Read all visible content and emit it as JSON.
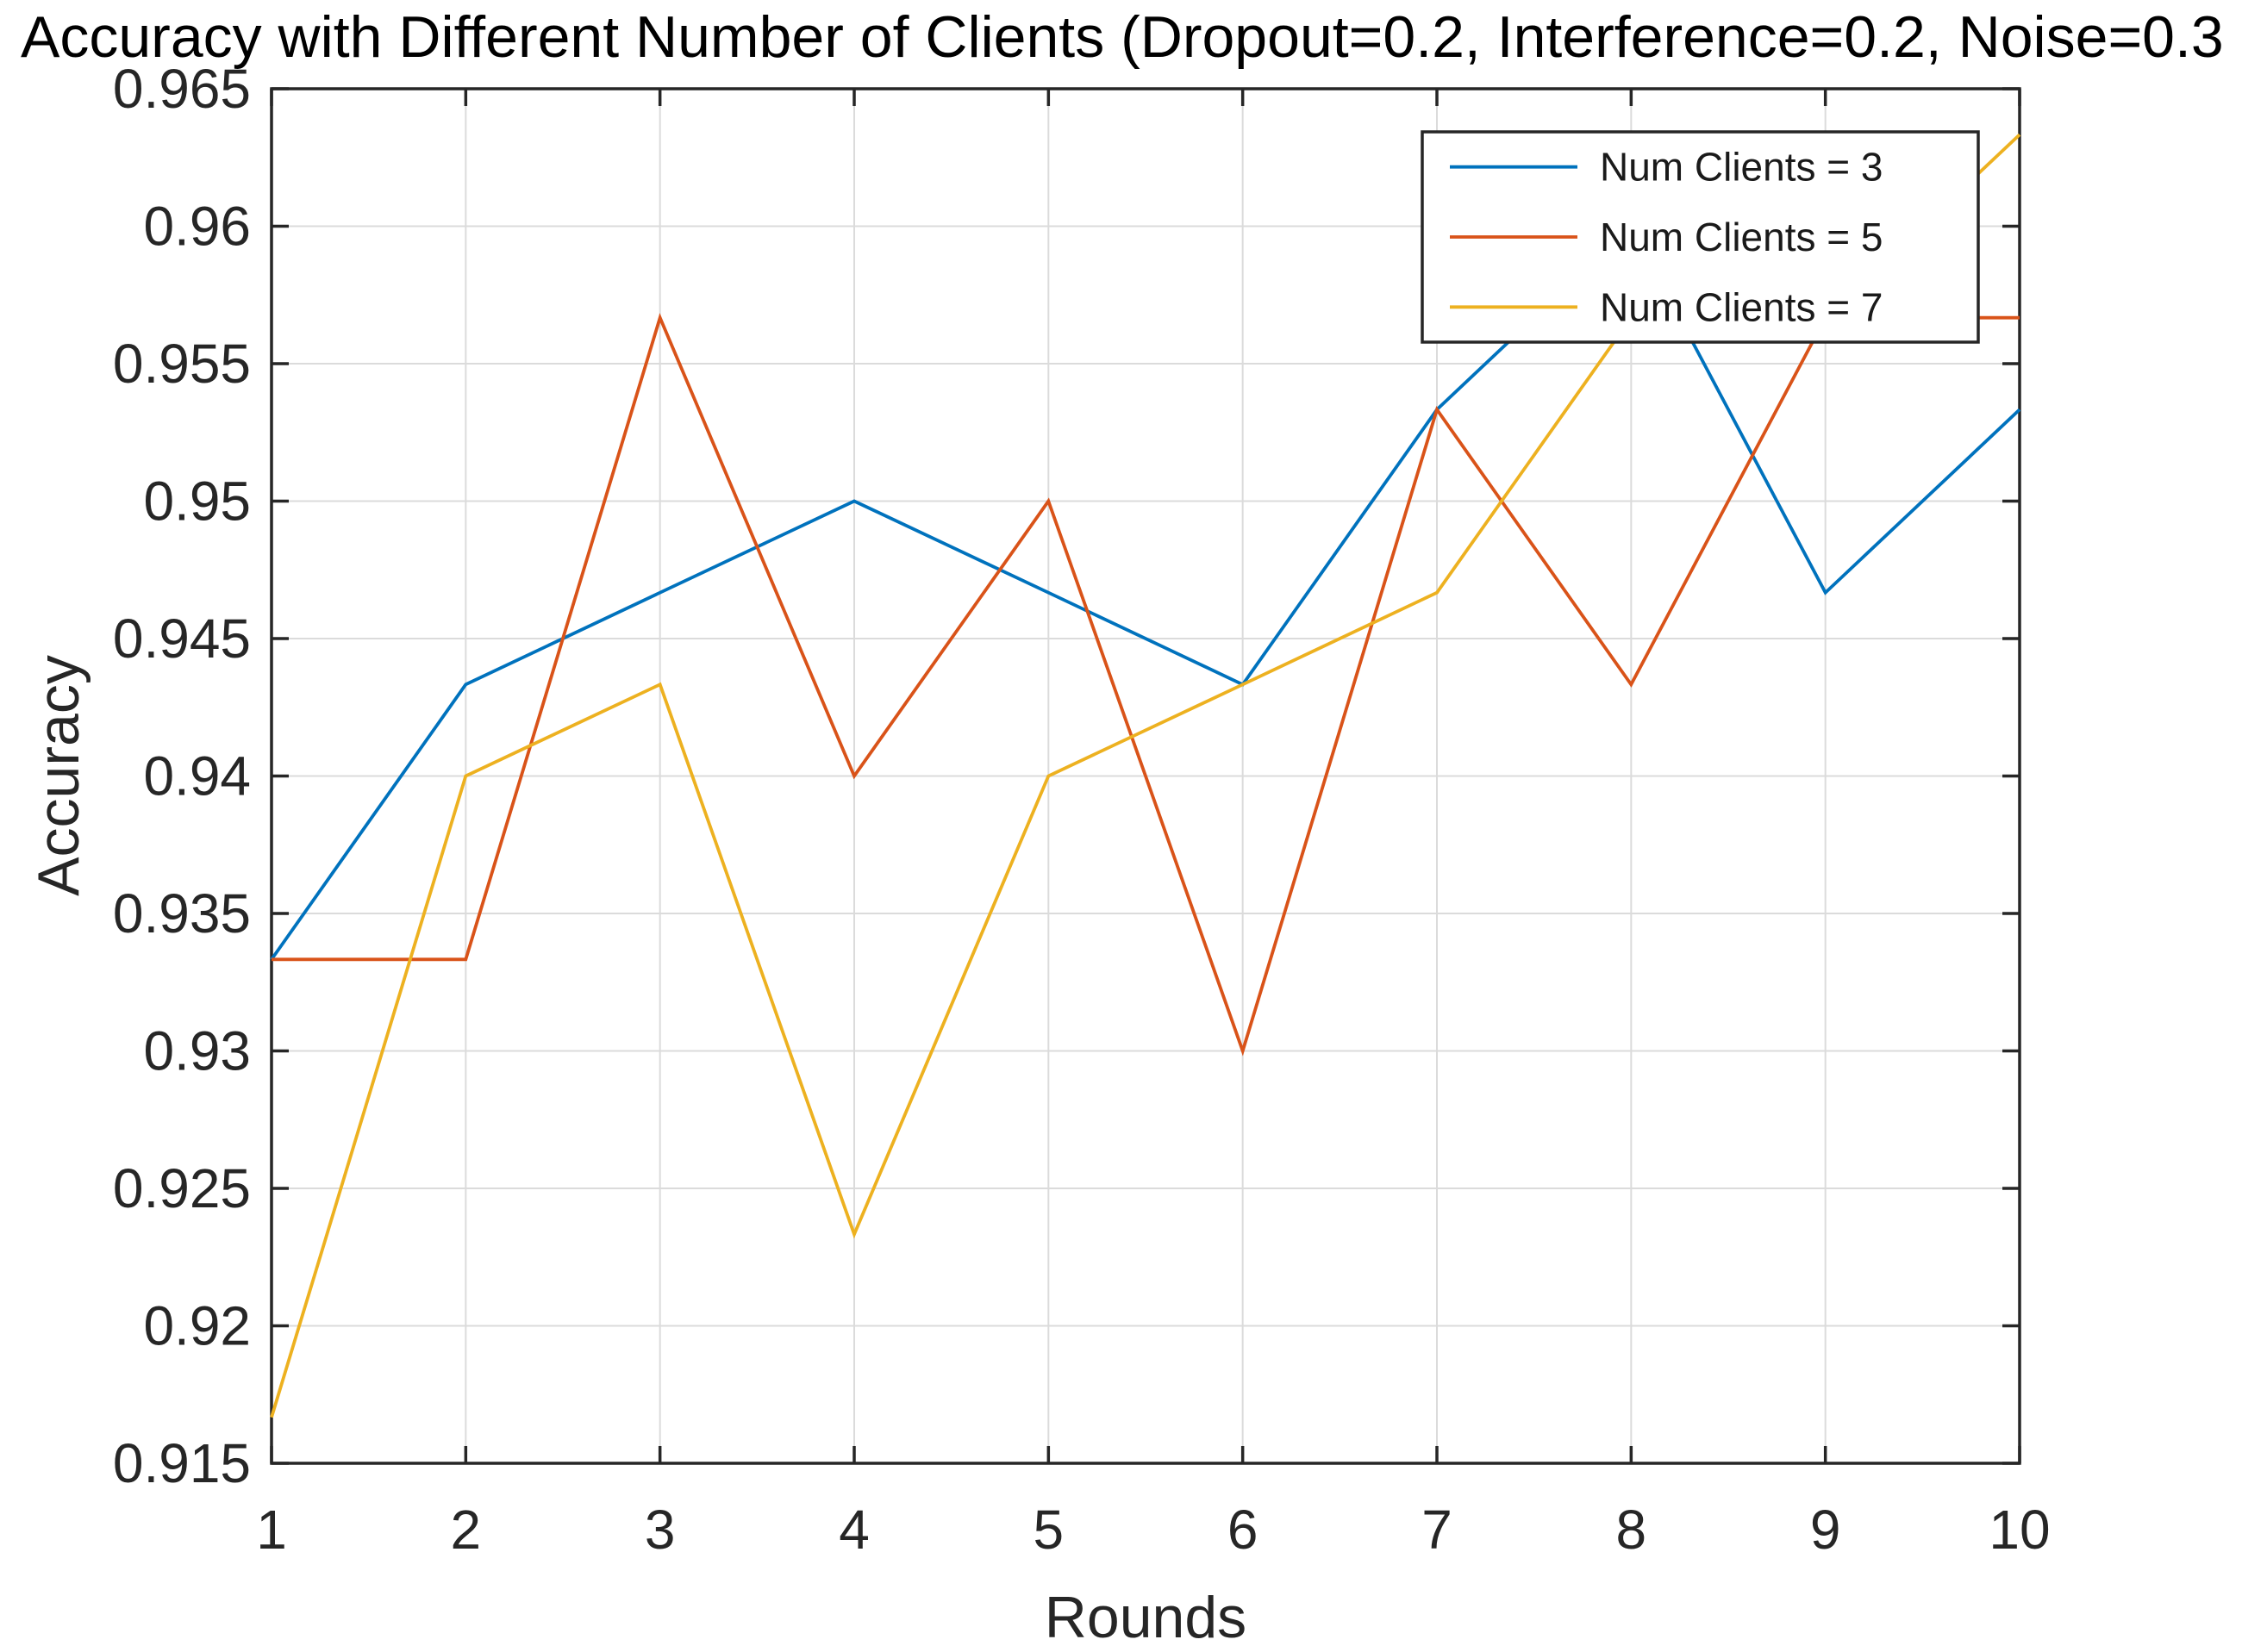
{
  "chart_data": {
    "type": "line",
    "title": "Accuracy with Different Number of Clients (Dropout=0.2, Interference=0.2, Noise=0.3",
    "title_clipped_at_right_edge": true,
    "xlabel": "Rounds",
    "ylabel": "Accuracy",
    "x": [
      1,
      2,
      3,
      4,
      5,
      6,
      7,
      8,
      9,
      10
    ],
    "x_ticks": [
      1,
      2,
      3,
      4,
      5,
      6,
      7,
      8,
      9,
      10
    ],
    "y_ticks": [
      0.915,
      0.92,
      0.925,
      0.93,
      0.935,
      0.94,
      0.945,
      0.95,
      0.955,
      0.96,
      0.965
    ],
    "xlim": [
      1,
      10
    ],
    "ylim": [
      0.915,
      0.965
    ],
    "grid": true,
    "legend": {
      "position": "northeast",
      "entries": [
        "Num Clients = 3",
        "Num Clients = 5",
        "Num Clients = 7"
      ]
    },
    "series": [
      {
        "name": "Num Clients = 3",
        "color": "#0072BD",
        "values": [
          0.93333,
          0.94333,
          0.94667,
          0.95,
          0.94667,
          0.94333,
          0.95333,
          0.96,
          0.94667,
          0.95333
        ]
      },
      {
        "name": "Num Clients = 5",
        "color": "#D95319",
        "values": [
          0.93333,
          0.93333,
          0.95667,
          0.94,
          0.95,
          0.93,
          0.95333,
          0.94333,
          0.95667,
          0.95667
        ]
      },
      {
        "name": "Num Clients = 7",
        "color": "#EDB120",
        "values": [
          0.91667,
          0.94,
          0.94333,
          0.92333,
          0.94,
          0.94333,
          0.94667,
          0.95667,
          0.95667,
          0.96333
        ]
      }
    ],
    "style": {
      "axis_color": "#262626",
      "grid_color": "#DBDBDB",
      "background": "#ffffff",
      "legend_background": "#ffffff",
      "legend_border_color": "#262626"
    }
  }
}
